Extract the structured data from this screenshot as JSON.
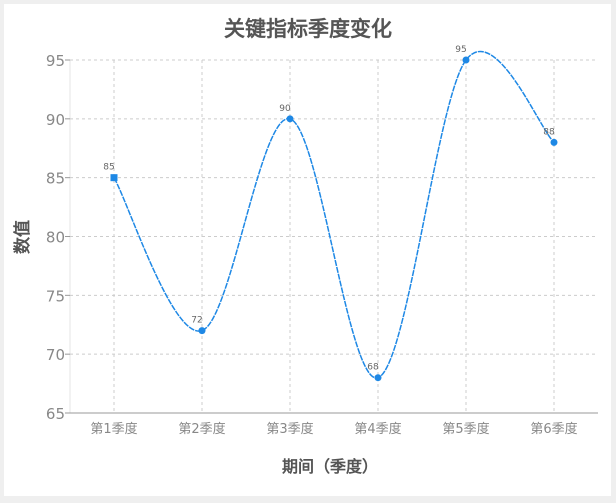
{
  "chart_data": {
    "type": "line",
    "title": "关键指标季度变化",
    "xlabel": "期间（季度）",
    "ylabel": "数值",
    "categories": [
      "第1季度",
      "第2季度",
      "第3季度",
      "第4季度",
      "第5季度",
      "第6季度"
    ],
    "series": [
      {
        "values": [
          85,
          72,
          90,
          68,
          95,
          88
        ],
        "color": "#1e88e5"
      }
    ],
    "ylim": [
      65,
      95
    ],
    "yticks": [
      65,
      70,
      75,
      80,
      85,
      90,
      95
    ],
    "grid": true,
    "smooth": true,
    "data_labels": true
  }
}
